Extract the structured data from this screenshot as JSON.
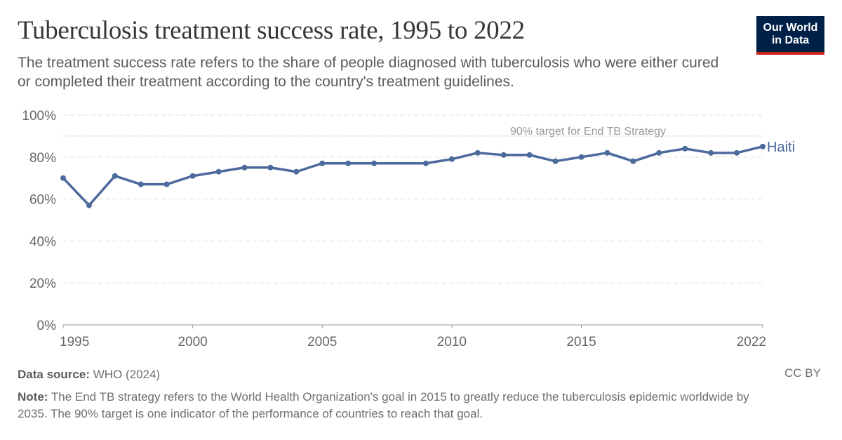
{
  "title": "Tuberculosis treatment success rate, 1995 to 2022",
  "subtitle": "The treatment success rate refers to the share of people diagnosed with tuberculosis who were either cured or completed their treatment according to the country's treatment guidelines.",
  "logo": {
    "line1": "Our World",
    "line2": "in Data"
  },
  "footer": {
    "source_label": "Data source:",
    "source": "WHO (2024)",
    "license": "CC BY",
    "note_label": "Note:",
    "note": "The End TB strategy refers to the World Health Organization's goal in 2015 to greatly reduce the tuberculosis epidemic worldwide by 2035. The 90% target is one indicator of the performance of countries to reach that goal."
  },
  "chart_data": {
    "type": "line",
    "ylim": [
      0,
      100
    ],
    "yticks": [
      0,
      20,
      40,
      60,
      80,
      100
    ],
    "ytick_labels": [
      "0%",
      "20%",
      "40%",
      "60%",
      "80%",
      "100%"
    ],
    "xlim": [
      1995,
      2022
    ],
    "xticks": [
      1995,
      2000,
      2005,
      2010,
      2015,
      2022
    ],
    "xtick_labels": [
      "1995",
      "2000",
      "2005",
      "2010",
      "2015",
      "2022"
    ],
    "grid": true,
    "reference_line": {
      "value": 90,
      "label": "90% target for End TB Strategy"
    },
    "series": [
      {
        "name": "Haiti",
        "color": "#4c6a9c",
        "x": [
          1995,
          1996,
          1997,
          1998,
          1999,
          2000,
          2001,
          2002,
          2003,
          2004,
          2005,
          2006,
          2007,
          2009,
          2010,
          2011,
          2012,
          2013,
          2014,
          2015,
          2016,
          2017,
          2018,
          2019,
          2020,
          2021,
          2022
        ],
        "values": [
          70,
          57,
          71,
          67,
          67,
          71,
          73,
          75,
          75,
          73,
          77,
          77,
          77,
          77,
          79,
          82,
          81,
          81,
          78,
          80,
          82,
          78,
          82,
          84,
          82,
          82,
          85
        ]
      }
    ]
  }
}
